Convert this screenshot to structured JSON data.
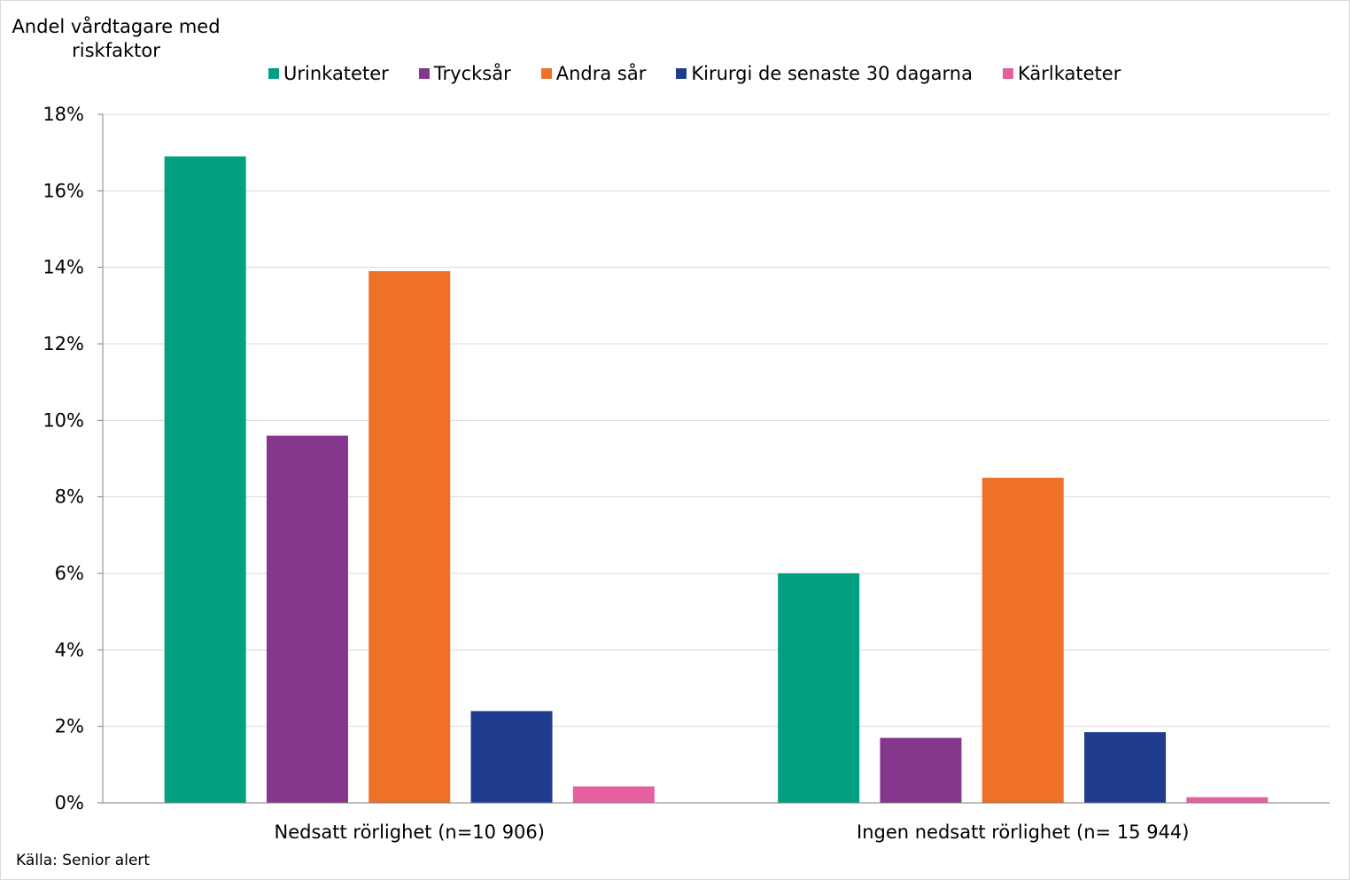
{
  "chart_data": {
    "type": "bar",
    "ylabel": "Andel vårdtagare med riskfaktor",
    "ylabel_lines": [
      "Andel vårdtagare med",
      "riskfaktor"
    ],
    "categories": [
      "Nedsatt rörlighet (n=10 906)",
      "Ingen nedsatt rörlighet (n= 15 944)"
    ],
    "ylim": [
      0,
      18
    ],
    "yticks": [
      0,
      2,
      4,
      6,
      8,
      10,
      12,
      14,
      16,
      18
    ],
    "ytick_labels": [
      "0%",
      "2%",
      "4%",
      "6%",
      "8%",
      "10%",
      "12%",
      "14%",
      "16%",
      "18%"
    ],
    "grid": true,
    "legend_position": "top",
    "series": [
      {
        "name": "Urinkateter",
        "color": "#00A080",
        "values": [
          16.9,
          6.0
        ]
      },
      {
        "name": "Trycksår",
        "color": "#84378C",
        "values": [
          9.6,
          1.7
        ]
      },
      {
        "name": "Andra sår",
        "color": "#EE7127",
        "values": [
          13.9,
          8.5
        ]
      },
      {
        "name": "Kirurgi de senaste 30 dagarna",
        "color": "#1F3C8F",
        "values": [
          2.4,
          1.85
        ]
      },
      {
        "name": "Kärlkateter",
        "color": "#E660A0",
        "values": [
          0.43,
          0.15
        ]
      }
    ]
  },
  "source": "Källa: Senior alert"
}
